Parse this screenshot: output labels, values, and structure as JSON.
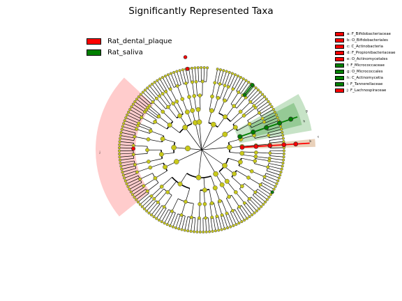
{
  "title": "Significantly Represented Taxa",
  "legend": [
    {
      "label": "Rat_dental_plaque",
      "color": "#ff0000"
    },
    {
      "label": "Rat_saliva",
      "color": "#008000"
    }
  ],
  "clade_key": [
    {
      "text": "a: F_Bifidobacteriaceae",
      "color": "#ff0000"
    },
    {
      "text": "b: O_Bifidobacteriales",
      "color": "#ff0000"
    },
    {
      "text": "c: C_Actinobacteria",
      "color": "#ff0000"
    },
    {
      "text": "d: F_Propionibacteriaceae",
      "color": "#ff0000"
    },
    {
      "text": "e: O_Actinomycetales",
      "color": "#ff0000"
    },
    {
      "text": "f: F_Micrococcaceae",
      "color": "#008000"
    },
    {
      "text": "g: O_Micrococcales",
      "color": "#008000"
    },
    {
      "text": "h: C_Actinomycetia",
      "color": "#008000"
    },
    {
      "text": "i: F_Tannerellaceae",
      "color": "#008000"
    },
    {
      "text": "j: F_Lachnospiraceae",
      "color": "#ff0000"
    }
  ],
  "chart_data": {
    "type": "cladogram",
    "title": "Significantly Represented Taxa",
    "groups": [
      {
        "name": "Rat_dental_plaque",
        "color": "#ff0000"
      },
      {
        "name": "Rat_saliva",
        "color": "#008000"
      }
    ],
    "clade_labels": [
      "a",
      "b",
      "c",
      "d",
      "e",
      "f",
      "g",
      "h",
      "i",
      "j"
    ],
    "shaded_sectors": [
      {
        "label": "j",
        "group": "Rat_dental_plaque"
      },
      {
        "label": "c",
        "group": "Rat_dental_plaque"
      },
      {
        "label": "h",
        "group": "Rat_saliva"
      },
      {
        "label": "g",
        "group": "Rat_saliva"
      },
      {
        "label": "i",
        "group": "Rat_saliva"
      }
    ],
    "node_colors": {
      "enriched_plaque": "#ff0000",
      "enriched_saliva": "#008000",
      "not_significant": "#c8c81a"
    }
  }
}
